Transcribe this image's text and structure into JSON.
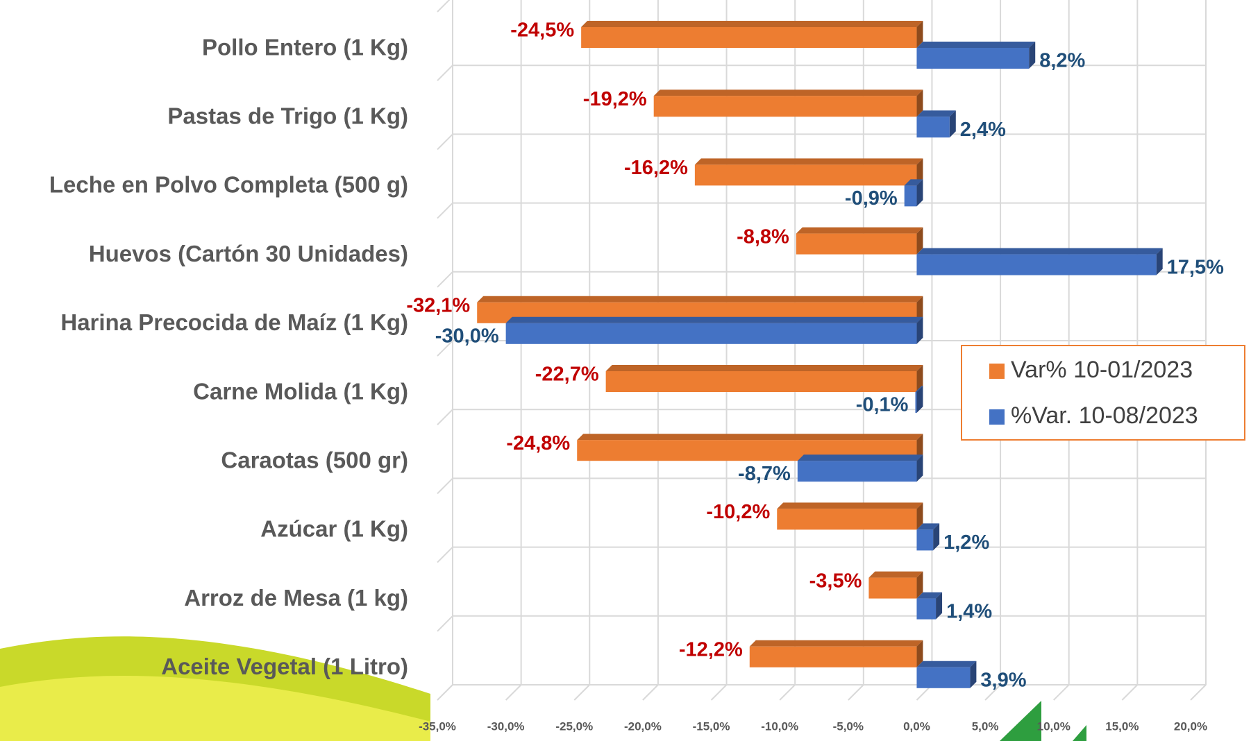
{
  "chart_data": {
    "type": "bar",
    "orientation": "horizontal",
    "categories": [
      "Pollo Entero (1 Kg)",
      "Pastas de Trigo (1 Kg)",
      "Leche en Polvo Completa (500 g)",
      "Huevos (Cartón 30 Unidades)",
      "Harina Precocida de Maíz (1 Kg)",
      "Carne Molida (1 Kg)",
      "Caraotas (500 gr)",
      "Azúcar (1 Kg)",
      "Arroz de Mesa (1 kg)",
      "Aceite Vegetal (1 Litro)"
    ],
    "series": [
      {
        "name": "Var% 10-01/2023",
        "color": "#ED7D31",
        "label_color": "#C00000",
        "values": [
          -24.5,
          -19.2,
          -16.2,
          -8.8,
          -32.1,
          -22.7,
          -24.8,
          -10.2,
          -3.5,
          -12.2
        ],
        "value_labels": [
          "-24,5%",
          "-19,2%",
          "-16,2%",
          "-8,8%",
          "-32,1%",
          "-22,7%",
          "-24,8%",
          "-10,2%",
          "-3,5%",
          "-12,2%"
        ]
      },
      {
        "name": "%Var. 10-08/2023",
        "color": "#4472C4",
        "label_color": "#1F4E79",
        "values": [
          8.2,
          2.4,
          -0.9,
          17.5,
          -30.0,
          -0.1,
          -8.7,
          1.2,
          1.4,
          3.9
        ],
        "value_labels": [
          "8,2%",
          "2,4%",
          "-0,9%",
          "17,5%",
          "-30,0%",
          "-0,1%",
          "-8,7%",
          "1,2%",
          "1,4%",
          "3,9%"
        ]
      }
    ],
    "xlim": [
      -35,
      20
    ],
    "xticks": [
      {
        "value": -35,
        "label": "-35,0%"
      },
      {
        "value": -30,
        "label": "-30,0%"
      },
      {
        "value": -25,
        "label": "-25,0%"
      },
      {
        "value": -20,
        "label": "-20,0%"
      },
      {
        "value": -15,
        "label": "-15,0%"
      },
      {
        "value": -10,
        "label": "-10,0%"
      },
      {
        "value": -5,
        "label": "-5,0%"
      },
      {
        "value": 0,
        "label": "0,0%"
      },
      {
        "value": 5,
        "label": "5,0%"
      },
      {
        "value": 10,
        "label": "10,0%"
      },
      {
        "value": 15,
        "label": "15,0%"
      },
      {
        "value": 20,
        "label": "20,0%"
      }
    ],
    "grid": true,
    "legend_position": "right"
  }
}
